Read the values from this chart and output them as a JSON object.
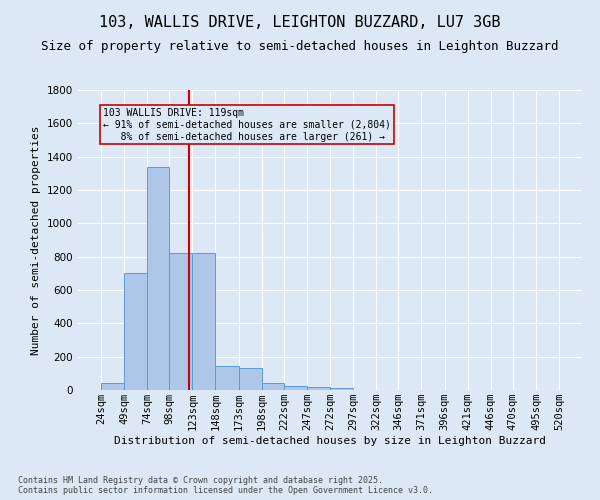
{
  "title": "103, WALLIS DRIVE, LEIGHTON BUZZARD, LU7 3GB",
  "subtitle": "Size of property relative to semi-detached houses in Leighton Buzzard",
  "xlabel": "Distribution of semi-detached houses by size in Leighton Buzzard",
  "ylabel": "Number of semi-detached properties",
  "footnote": "Contains HM Land Registry data © Crown copyright and database right 2025.\nContains public sector information licensed under the Open Government Licence v3.0.",
  "bar_edges": [
    24,
    49,
    74,
    98,
    123,
    148,
    173,
    198,
    222,
    247,
    272,
    297,
    322,
    346,
    371,
    396,
    421,
    446,
    470,
    495,
    520
  ],
  "bar_values": [
    40,
    700,
    1340,
    820,
    820,
    145,
    135,
    40,
    25,
    20,
    10,
    0,
    0,
    0,
    0,
    0,
    0,
    0,
    0,
    0
  ],
  "bar_color": "#aec6e8",
  "bar_edge_color": "#5b9bd5",
  "property_size": 119,
  "vline_color": "#cc0000",
  "annotation_line1": "103 WALLIS DRIVE: 119sqm",
  "annotation_line2": "← 91% of semi-detached houses are smaller (2,804)",
  "annotation_line3": "   8% of semi-detached houses are larger (261) →",
  "annotation_box_color": "#cc0000",
  "ylim": [
    0,
    1800
  ],
  "yticks": [
    0,
    200,
    400,
    600,
    800,
    1000,
    1200,
    1400,
    1600,
    1800
  ],
  "bg_color": "#dce8f5",
  "plot_bg_color": "#dce8f5",
  "grid_color": "#ffffff",
  "title_fontsize": 11,
  "subtitle_fontsize": 9,
  "axis_label_fontsize": 8,
  "tick_fontsize": 7.5,
  "ylabel_fontsize": 8
}
